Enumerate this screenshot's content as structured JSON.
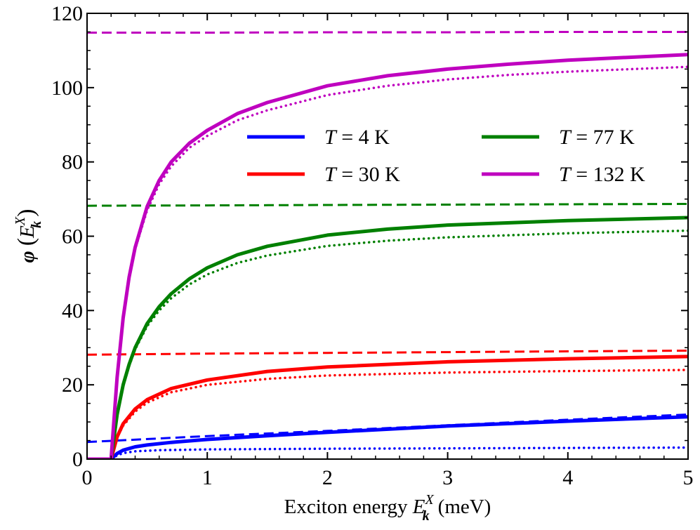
{
  "chart_data": {
    "type": "line",
    "title": "",
    "xlabel_main": "Exciton energy",
    "xlabel_symbol": "E",
    "xlabel_sub": "k",
    "xlabel_sup": "X",
    "xlabel_unit": "(meV)",
    "ylabel_symbol": "φ",
    "ylabel_open": "(",
    "ylabel_close": ")",
    "xlim": [
      0,
      5
    ],
    "ylim": [
      0,
      120
    ],
    "xticks": [
      0,
      1,
      2,
      3,
      4,
      5
    ],
    "yticks": [
      0,
      20,
      40,
      60,
      80,
      100,
      120
    ],
    "xtick_labels": [
      "0",
      "1",
      "2",
      "3",
      "4",
      "5"
    ],
    "ytick_labels": [
      "0",
      "20",
      "40",
      "60",
      "80",
      "100",
      "120"
    ],
    "threshold_energy": 0.2,
    "legend_position": "upper-right",
    "legend_var": "T",
    "legend_eq": "=",
    "series": [
      {
        "name": "T = 4 K",
        "label": "4 K",
        "color": "#0000ff",
        "solid": {
          "x": [
            0,
            0.2,
            0.25,
            0.3,
            0.4,
            0.5,
            0.7,
            1.0,
            1.5,
            2.0,
            3.0,
            4.0,
            5.0
          ],
          "y": [
            0,
            0,
            1.5,
            2.4,
            3.3,
            3.8,
            4.5,
            5.3,
            6.3,
            7.2,
            8.9,
            10.2,
            11.4
          ]
        },
        "dotted": {
          "x": [
            0,
            0.2,
            0.25,
            0.3,
            0.4,
            0.6,
            1.0,
            2.0,
            3.0,
            4.0,
            5.0
          ],
          "y": [
            0,
            0,
            1.0,
            1.6,
            2.1,
            2.4,
            2.6,
            2.8,
            2.9,
            3.0,
            3.1
          ]
        },
        "dashed": {
          "x": [
            0,
            1,
            2,
            3,
            4,
            5
          ],
          "y": [
            4.6,
            6.2,
            7.6,
            9.1,
            10.6,
            12.0
          ]
        }
      },
      {
        "name": "T = 30 K",
        "label": "30 K",
        "color": "#ff0000",
        "solid": {
          "x": [
            0,
            0.2,
            0.25,
            0.3,
            0.4,
            0.5,
            0.7,
            1.0,
            1.5,
            2.0,
            3.0,
            4.0,
            5.0
          ],
          "y": [
            0,
            0,
            6.0,
            9.5,
            13.5,
            16.0,
            19.0,
            21.3,
            23.6,
            24.8,
            26.2,
            27.0,
            27.6
          ]
        },
        "dotted": {
          "x": [
            0,
            0.2,
            0.25,
            0.3,
            0.4,
            0.5,
            0.7,
            1.0,
            1.5,
            2.0,
            3.0,
            4.0,
            5.0
          ],
          "y": [
            0,
            0,
            5.8,
            9.0,
            12.8,
            15.2,
            18.0,
            20.0,
            21.6,
            22.5,
            23.3,
            23.7,
            24.0
          ]
        },
        "dashed": {
          "x": [
            0,
            1,
            2,
            3,
            4,
            5
          ],
          "y": [
            28.1,
            28.4,
            28.6,
            28.8,
            29.0,
            29.2
          ]
        }
      },
      {
        "name": "T = 77 K",
        "label": "77 K",
        "color": "#008000",
        "solid": {
          "x": [
            0,
            0.2,
            0.25,
            0.3,
            0.35,
            0.4,
            0.5,
            0.6,
            0.7,
            0.85,
            1.0,
            1.25,
            1.5,
            2.0,
            2.5,
            3.0,
            4.0,
            5.0
          ],
          "y": [
            0,
            0,
            12.0,
            20.0,
            25.5,
            30.0,
            36.5,
            41.0,
            44.5,
            48.5,
            51.5,
            55.0,
            57.3,
            60.3,
            61.9,
            63.0,
            64.2,
            65.0
          ]
        },
        "dotted": {
          "x": [
            0,
            0.2,
            0.25,
            0.3,
            0.35,
            0.4,
            0.5,
            0.6,
            0.7,
            0.85,
            1.0,
            1.25,
            1.5,
            2.0,
            2.5,
            3.0,
            4.0,
            5.0
          ],
          "y": [
            0,
            0,
            11.5,
            19.5,
            25.0,
            29.5,
            35.8,
            40.0,
            43.3,
            47.0,
            49.7,
            52.8,
            54.8,
            57.4,
            58.8,
            59.7,
            60.8,
            61.5
          ]
        },
        "dashed": {
          "x": [
            0,
            1,
            2,
            3,
            4,
            5
          ],
          "y": [
            68.2,
            68.3,
            68.4,
            68.5,
            68.6,
            68.7
          ]
        }
      },
      {
        "name": "T = 132 K",
        "label": "132 K",
        "color": "#bf00bf",
        "solid": {
          "x": [
            0,
            0.2,
            0.25,
            0.3,
            0.35,
            0.4,
            0.5,
            0.6,
            0.7,
            0.85,
            1.0,
            1.25,
            1.5,
            2.0,
            2.5,
            3.0,
            3.5,
            4.0,
            5.0
          ],
          "y": [
            0,
            0,
            22.0,
            38.0,
            49.0,
            57.0,
            68.0,
            75.0,
            80.0,
            85.0,
            88.5,
            93.0,
            96.0,
            100.5,
            103.2,
            105.0,
            106.3,
            107.4,
            108.9
          ]
        },
        "dotted": {
          "x": [
            0,
            0.2,
            0.25,
            0.3,
            0.35,
            0.4,
            0.5,
            0.6,
            0.7,
            0.85,
            1.0,
            1.25,
            1.5,
            2.0,
            2.5,
            3.0,
            3.5,
            4.0,
            5.0
          ],
          "y": [
            0,
            0,
            21.5,
            37.5,
            48.5,
            56.5,
            67.0,
            74.0,
            78.8,
            83.8,
            87.0,
            91.2,
            93.9,
            98.0,
            100.5,
            102.2,
            103.4,
            104.3,
            105.6
          ]
        },
        "dashed": {
          "x": [
            0,
            1,
            2,
            3,
            4,
            5
          ],
          "y": [
            114.8,
            114.8,
            114.9,
            114.9,
            115.0,
            115.0
          ]
        }
      }
    ]
  }
}
